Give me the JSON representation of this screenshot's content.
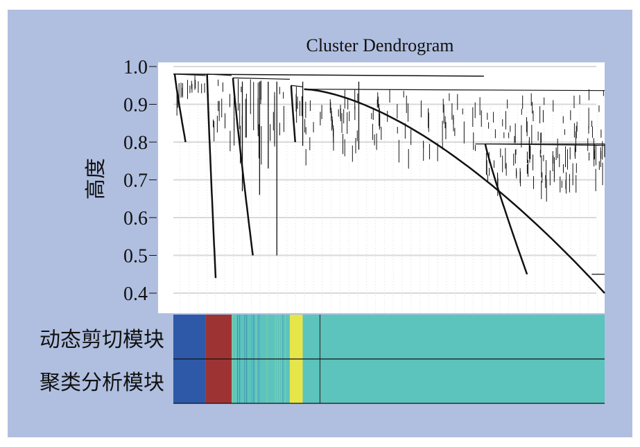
{
  "chart_data": {
    "type": "dendrogram",
    "title": "Cluster Dendrogram",
    "ylabel": "高度",
    "ylim": [
      0.38,
      1.0
    ],
    "yticks": [
      1.0,
      0.9,
      0.8,
      0.7,
      0.6,
      0.5,
      0.4
    ],
    "ytick_labels": [
      "1.0",
      "0.9",
      "0.8",
      "0.7",
      "0.6",
      "0.5",
      "0.4"
    ],
    "grid": true,
    "root_height": 0.98,
    "merges": [
      {
        "cluster": "blue",
        "leaf_range": [
          0.0,
          0.075
        ],
        "top_height": 0.98,
        "bottom_height": 0.8
      },
      {
        "cluster": "red",
        "leaf_range": [
          0.075,
          0.135
        ],
        "top_height": 0.98,
        "bottom_height": 0.44
      },
      {
        "cluster": "mixed",
        "leaf_range": [
          0.135,
          0.27
        ],
        "top_height": 0.97,
        "bottom_height": 0.5
      },
      {
        "cluster": "yellow",
        "leaf_range": [
          0.27,
          0.3
        ],
        "top_height": 0.95,
        "bottom_height": 0.8
      },
      {
        "cluster": "turquoise",
        "leaf_range": [
          0.3,
          1.0
        ],
        "top_height": 0.94,
        "bottom_height": 0.4
      },
      {
        "cluster": "right-branch",
        "leaf_range": [
          0.72,
          1.0
        ],
        "top_height": 0.795,
        "bottom_height": 0.45
      }
    ],
    "color_rows": [
      {
        "label": "动态剪切模块",
        "segments": [
          {
            "module": "blue",
            "color": "#2e59a8",
            "start": 0.0,
            "end": 0.075
          },
          {
            "module": "brown",
            "color": "#9e3333",
            "start": 0.075,
            "end": 0.135
          },
          {
            "module": "turquoise",
            "color": "#5cc4bc",
            "start": 0.135,
            "end": 0.27
          },
          {
            "module": "yellow",
            "color": "#e6e54a",
            "start": 0.27,
            "end": 0.3
          },
          {
            "module": "turquoise",
            "color": "#5cc4bc",
            "start": 0.3,
            "end": 1.0
          }
        ]
      },
      {
        "label": "聚类分析模块",
        "segments": [
          {
            "module": "blue",
            "color": "#2e59a8",
            "start": 0.0,
            "end": 0.075
          },
          {
            "module": "brown",
            "color": "#9e3333",
            "start": 0.075,
            "end": 0.135
          },
          {
            "module": "turquoise",
            "color": "#5cc4bc",
            "start": 0.135,
            "end": 0.27
          },
          {
            "module": "yellow",
            "color": "#e6e54a",
            "start": 0.27,
            "end": 0.3
          },
          {
            "module": "turquoise",
            "color": "#5cc4bc",
            "start": 0.3,
            "end": 1.0
          }
        ]
      }
    ],
    "colors": {
      "background": "#b0bfe0",
      "plot_background": "#ffffff",
      "line": "#111111",
      "grid": "#d9d9d9"
    }
  }
}
